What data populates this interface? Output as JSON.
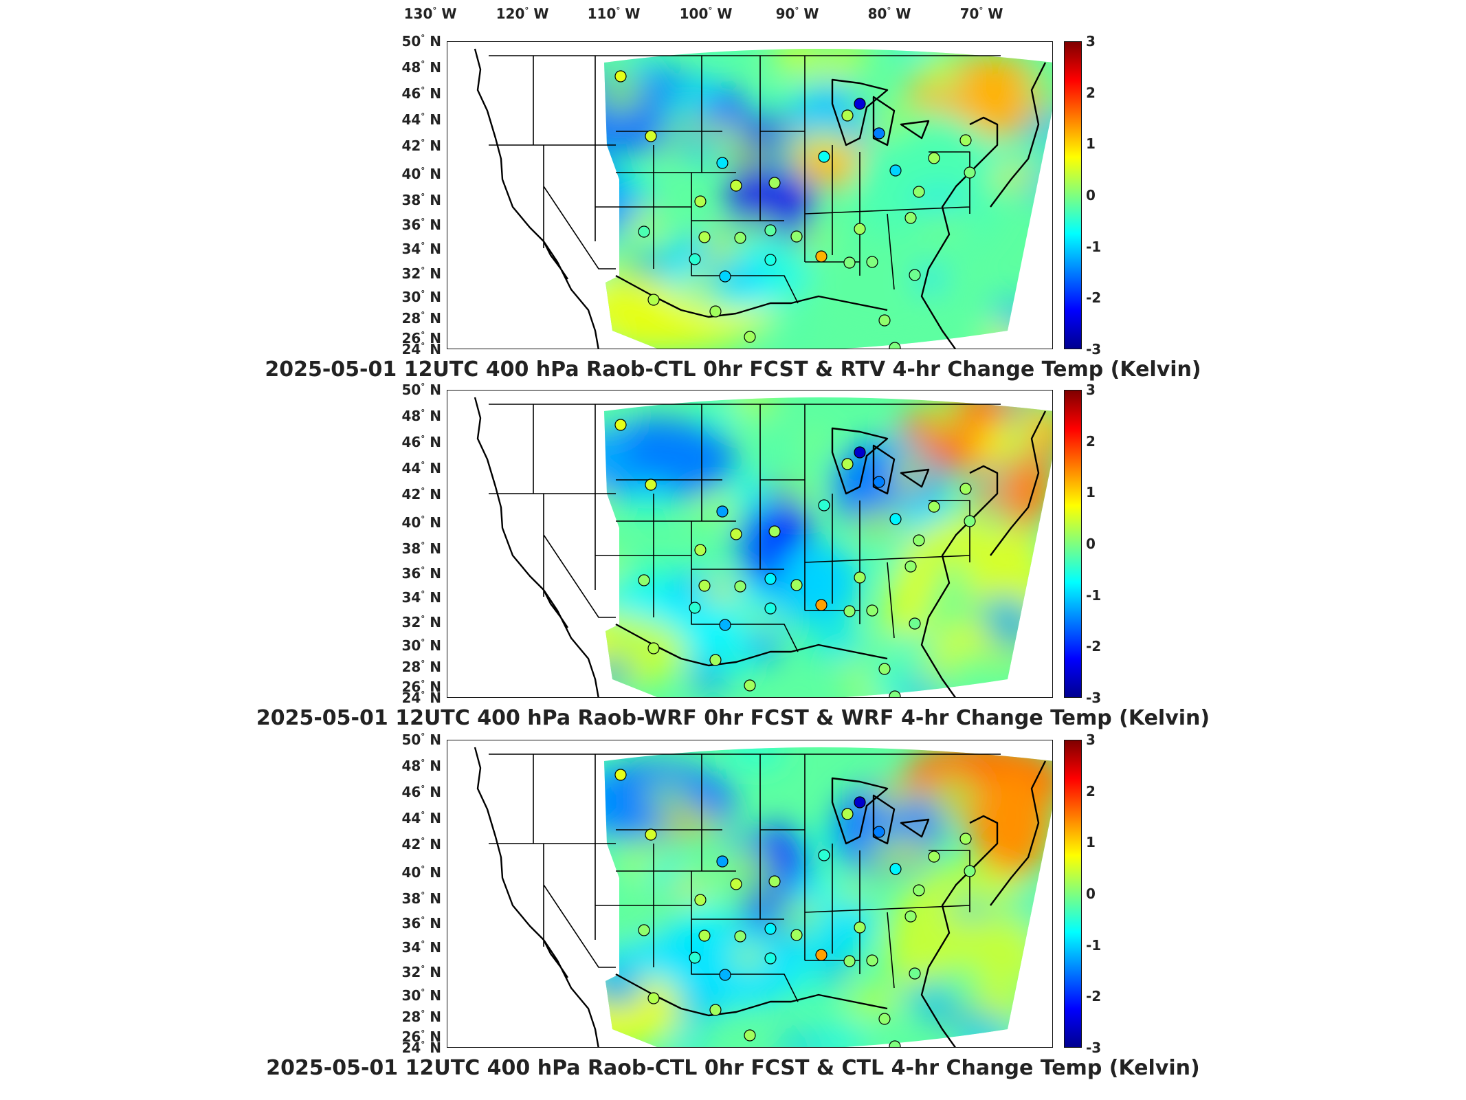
{
  "longitude_labels": [
    "130",
    "120",
    "110",
    "100",
    "90",
    "80",
    "70"
  ],
  "lon_suffix": "W",
  "latitude_labels": [
    "50",
    "48",
    "46",
    "44",
    "42",
    "40",
    "38",
    "36",
    "34",
    "32",
    "30",
    "28",
    "26",
    "24"
  ],
  "lat_suffix": "N",
  "colorbar": {
    "ticks": [
      "3",
      "2",
      "1",
      "0",
      "-1",
      "-2",
      "-3"
    ],
    "range": [
      -3,
      3
    ],
    "colormap": "jet",
    "colors": [
      "#00008f",
      "#0000ff",
      "#007fff",
      "#00ffff",
      "#7fff7f",
      "#ffff00",
      "#ff7f00",
      "#ff0000",
      "#7f0000"
    ]
  },
  "panels": [
    {
      "title": "2025-05-01 12UTC 400 hPa Raob-CTL 0hr FCST & RTV 4-hr Change Temp (Kelvin)"
    },
    {
      "title": "2025-05-01 12UTC 400 hPa Raob-WRF 0hr FCST & WRF 4-hr Change Temp (Kelvin)"
    },
    {
      "title": "2025-05-01 12UTC 400 hPa Raob-CTL 0hr FCST & CTL 4-hr Change Temp (Kelvin)"
    }
  ]
}
